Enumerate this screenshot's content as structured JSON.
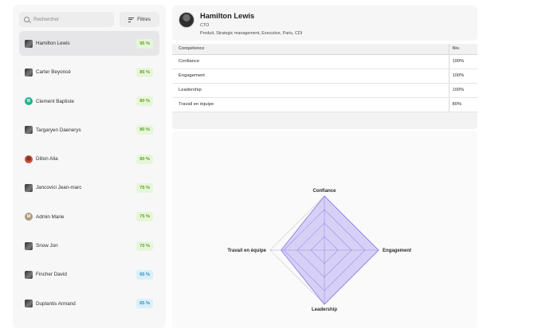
{
  "search": {
    "placeholder": "Rechercher"
  },
  "filters": {
    "label": "Filtres"
  },
  "people": [
    {
      "name": "Hamilton Lewis",
      "score": "95 %",
      "avatar": "photo",
      "initial": "",
      "selected": true,
      "badge_style": "green"
    },
    {
      "name": "Carter Beyoncé",
      "score": "85 %",
      "avatar": "photo",
      "initial": "",
      "selected": false,
      "badge_style": "green"
    },
    {
      "name": "Clement Baptiste",
      "score": "80 %",
      "avatar": "letter",
      "initial": "B",
      "avatar_color": "#1fb58f",
      "selected": false,
      "badge_style": "green"
    },
    {
      "name": "Targaryen Daenerys",
      "score": "80 %",
      "avatar": "photo",
      "initial": "",
      "selected": false,
      "badge_style": "green"
    },
    {
      "name": "Dillon Alia",
      "score": "80 %",
      "avatar": "photo-red",
      "initial": "",
      "selected": false,
      "badge_style": "green"
    },
    {
      "name": "Jancovici Jean-marc",
      "score": "75 %",
      "avatar": "photo",
      "initial": "",
      "selected": false,
      "badge_style": "green"
    },
    {
      "name": "Admin Marie",
      "score": "75 %",
      "avatar": "letter",
      "initial": "M",
      "avatar_color": "#b09a7a",
      "selected": false,
      "badge_style": "green"
    },
    {
      "name": "Snow Jon",
      "score": "70 %",
      "avatar": "photo",
      "initial": "",
      "selected": false,
      "badge_style": "green"
    },
    {
      "name": "Fincher David",
      "score": "65 %",
      "avatar": "photo",
      "initial": "",
      "selected": false,
      "badge_style": "blue"
    },
    {
      "name": "Duplantis Armand",
      "score": "65 %",
      "avatar": "photo",
      "initial": "",
      "selected": false,
      "badge_style": "blue"
    }
  ],
  "profile": {
    "name": "Hamilton Lewis",
    "role": "CTO",
    "tags": "Produit, Strategic management, Executive, Paris, CDI"
  },
  "skills_table": {
    "headers": {
      "skill": "Compétence",
      "level": "Niv."
    },
    "rows": [
      {
        "skill": "Confiance",
        "level": "100%"
      },
      {
        "skill": "Engagement",
        "level": "100%"
      },
      {
        "skill": "Leadership",
        "level": "100%"
      },
      {
        "skill": "Travail en équipe",
        "level": "80%"
      }
    ]
  },
  "colors": {
    "badge_green_bg": "#e6f7d9",
    "badge_green_fg": "#5f9e2c",
    "badge_blue_bg": "#d9f0fa",
    "badge_blue_fg": "#2f8cb5",
    "radar_fill": "#cfc8f5",
    "radar_stroke": "#8b80e6"
  },
  "chart_data": {
    "type": "radar",
    "axes": [
      "Confiance",
      "Engagement",
      "Leadership",
      "Travail en équipe"
    ],
    "values": [
      100,
      100,
      100,
      80
    ],
    "range": [
      0,
      100
    ]
  }
}
